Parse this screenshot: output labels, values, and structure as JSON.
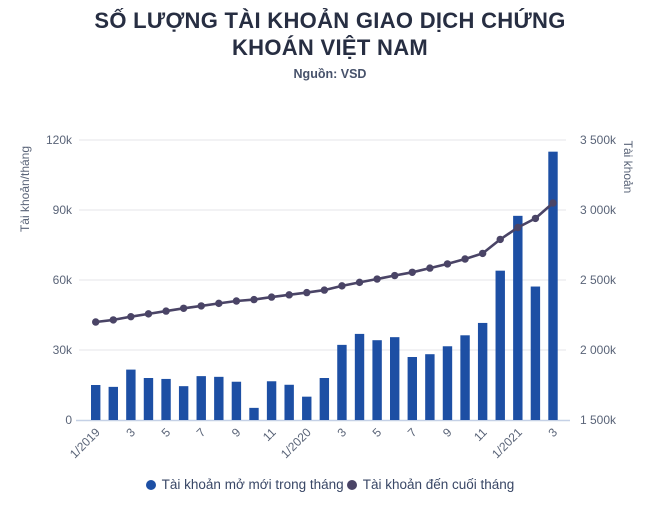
{
  "page": {
    "title": "SỐ LƯỢNG TÀI KHOẢN GIAO DỊCH CHỨNG KHOÁN VIỆT NAM",
    "subtitle": "Nguồn: VSD"
  },
  "colors": {
    "bar": "#1d4fa4",
    "line": "#4a4466",
    "grid": "#e5e5e9",
    "axis_line": "#c5d1e6",
    "title_color": "#272e42",
    "subtitle_color": "#47526b",
    "tick_color": "#5a6478",
    "legend_text": "#394766"
  },
  "chart_data": {
    "type": "bar+line combo, dual y-axis",
    "grid": true,
    "legend_position": "bottom",
    "months": [
      "1/2019",
      "2/2019",
      "3/2019",
      "4/2019",
      "5/2019",
      "6/2019",
      "7/2019",
      "8/2019",
      "9/2019",
      "10/2019",
      "11/2019",
      "12/2019",
      "1/2020",
      "2/2020",
      "3/2020",
      "4/2020",
      "5/2020",
      "6/2020",
      "7/2020",
      "8/2020",
      "9/2020",
      "10/2020",
      "11/2020",
      "12/2020",
      "1/2021",
      "2/2021",
      "3/2021"
    ],
    "x_tick_labels": [
      "1/2019",
      "3",
      "5",
      "7",
      "9",
      "11",
      "1/2020",
      "3",
      "5",
      "7",
      "9",
      "11",
      "1/2021",
      "3"
    ],
    "x_tick_every": 2,
    "axes": {
      "left": {
        "title": "Tài khoản/tháng",
        "range": [
          0,
          120000
        ],
        "ticks": [
          {
            "value": 0,
            "label": "0"
          },
          {
            "value": 30000,
            "label": "30k"
          },
          {
            "value": 60000,
            "label": "60k"
          },
          {
            "value": 90000,
            "label": "90k"
          },
          {
            "value": 120000,
            "label": "120k"
          }
        ]
      },
      "right": {
        "title": "Tài khoản",
        "range": [
          1500000,
          3500000
        ],
        "ticks": [
          {
            "value": 1500000,
            "label": "1 500k"
          },
          {
            "value": 2000000,
            "label": "2 000k"
          },
          {
            "value": 2500000,
            "label": "2 500k"
          },
          {
            "value": 3000000,
            "label": "3 000k"
          },
          {
            "value": 3500000,
            "label": "3 500k"
          }
        ]
      }
    },
    "series": [
      {
        "name": "Tài khoản mở mới trong tháng",
        "type": "bar",
        "axis": "left",
        "color": "#1d4fa4",
        "values": [
          15000,
          14200,
          21600,
          18000,
          17600,
          14500,
          18800,
          18500,
          16400,
          5200,
          16600,
          15100,
          10000,
          18000,
          32200,
          36900,
          34200,
          35500,
          27000,
          28200,
          31600,
          36300,
          41600,
          64000,
          87500,
          57200,
          115000
        ]
      },
      {
        "name": "Tài khoản đến cuối tháng",
        "type": "line",
        "axis": "right",
        "color": "#4a4466",
        "values": [
          2200000,
          2215000,
          2238000,
          2258000,
          2278000,
          2298000,
          2315000,
          2333000,
          2350000,
          2360000,
          2378000,
          2394000,
          2410000,
          2428000,
          2458000,
          2483000,
          2507000,
          2532000,
          2555000,
          2585000,
          2615000,
          2650000,
          2690000,
          2790000,
          2875000,
          2940000,
          3050000
        ]
      }
    ]
  },
  "legend": {
    "items": [
      {
        "label": "Tài khoản mở mới trong tháng"
      },
      {
        "label": "Tài khoản đến cuối tháng"
      }
    ]
  }
}
